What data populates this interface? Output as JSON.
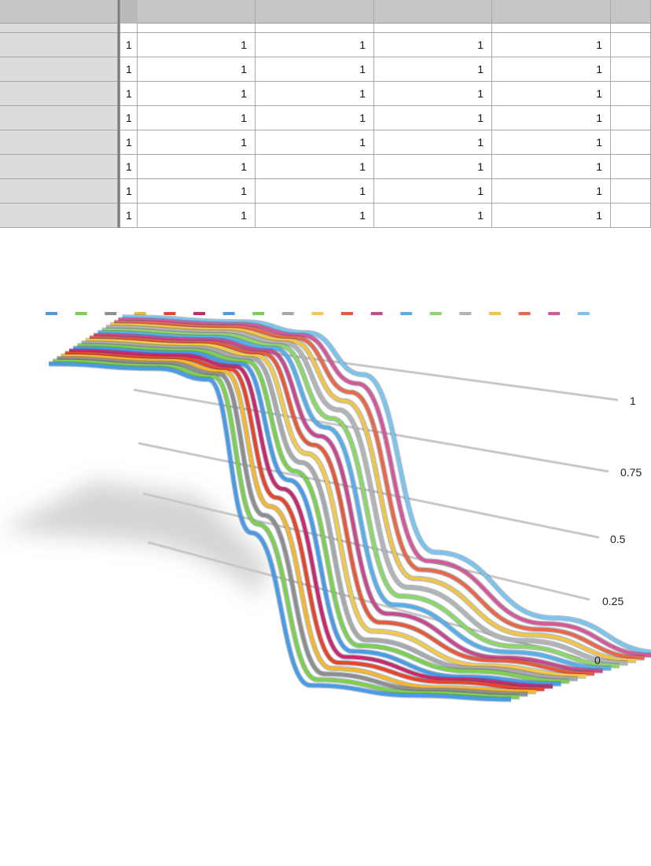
{
  "sheet": {
    "header_cells": [
      "",
      "",
      "",
      "",
      "",
      "",
      ""
    ],
    "rows": [
      [
        "",
        "1",
        "1",
        "1",
        "1",
        "1"
      ],
      [
        "",
        "1",
        "1",
        "1",
        "1",
        "1"
      ],
      [
        "",
        "1",
        "1",
        "1",
        "1",
        "1"
      ],
      [
        "",
        "1",
        "1",
        "1",
        "1",
        "1"
      ],
      [
        "",
        "1",
        "1",
        "1",
        "1",
        "1"
      ],
      [
        "",
        "1",
        "1",
        "1",
        "1",
        "1"
      ],
      [
        "",
        "1",
        "1",
        "1",
        "1",
        "1"
      ],
      [
        "",
        "1",
        "1",
        "1",
        "1",
        "1"
      ]
    ]
  },
  "chart_data": {
    "type": "line",
    "title": "",
    "legend": "top",
    "grid": true,
    "ylim": [
      0,
      1
    ],
    "y_ticks": [
      "1",
      "0.75",
      "0.5",
      "0.25",
      "0"
    ],
    "series_colors": [
      "#4a9be6",
      "#7ecf4f",
      "#8e8e8e",
      "#f2b633",
      "#e5472c",
      "#c72b6d",
      "#4a9be6",
      "#7ecf4f",
      "#a8a8a8",
      "#f2c94c",
      "#e55a3a",
      "#c94a8a",
      "#5aaee8",
      "#8fd669",
      "#b3b3b3",
      "#f0c44c",
      "#e8684a",
      "#d45a95",
      "#7cc4ec"
    ],
    "series": [
      {
        "values": [
          1,
          1,
          0.98,
          0.5,
          0.02,
          0,
          0
        ]
      },
      {
        "values": [
          1,
          1,
          0.98,
          0.52,
          0.03,
          0,
          0
        ]
      },
      {
        "values": [
          1,
          1,
          0.98,
          0.54,
          0.04,
          0,
          0
        ]
      },
      {
        "values": [
          1,
          1,
          0.98,
          0.56,
          0.05,
          0,
          0
        ]
      },
      {
        "values": [
          1,
          1,
          0.98,
          0.58,
          0.06,
          0.01,
          0
        ]
      },
      {
        "values": [
          1,
          1,
          0.98,
          0.6,
          0.07,
          0.01,
          0
        ]
      },
      {
        "values": [
          1,
          1,
          0.98,
          0.62,
          0.08,
          0.01,
          0
        ]
      },
      {
        "values": [
          1,
          1,
          0.98,
          0.64,
          0.09,
          0.02,
          0
        ]
      },
      {
        "values": [
          1,
          1,
          0.98,
          0.66,
          0.1,
          0.02,
          0
        ]
      },
      {
        "values": [
          1,
          1,
          0.98,
          0.68,
          0.12,
          0.02,
          0
        ]
      },
      {
        "values": [
          1,
          1,
          0.98,
          0.7,
          0.14,
          0.03,
          0
        ]
      },
      {
        "values": [
          1,
          1,
          0.98,
          0.72,
          0.16,
          0.03,
          0
        ]
      },
      {
        "values": [
          1,
          1,
          0.98,
          0.74,
          0.18,
          0.04,
          0
        ]
      },
      {
        "values": [
          1,
          1,
          0.98,
          0.76,
          0.2,
          0.05,
          0
        ]
      },
      {
        "values": [
          1,
          1,
          0.98,
          0.78,
          0.22,
          0.06,
          0
        ]
      },
      {
        "values": [
          1,
          1,
          0.98,
          0.8,
          0.24,
          0.07,
          0
        ]
      },
      {
        "values": [
          1,
          1,
          0.98,
          0.82,
          0.26,
          0.08,
          0
        ]
      },
      {
        "values": [
          1,
          1,
          0.98,
          0.84,
          0.28,
          0.09,
          0
        ]
      },
      {
        "values": [
          1,
          1,
          0.98,
          0.86,
          0.3,
          0.1,
          0
        ]
      }
    ]
  }
}
